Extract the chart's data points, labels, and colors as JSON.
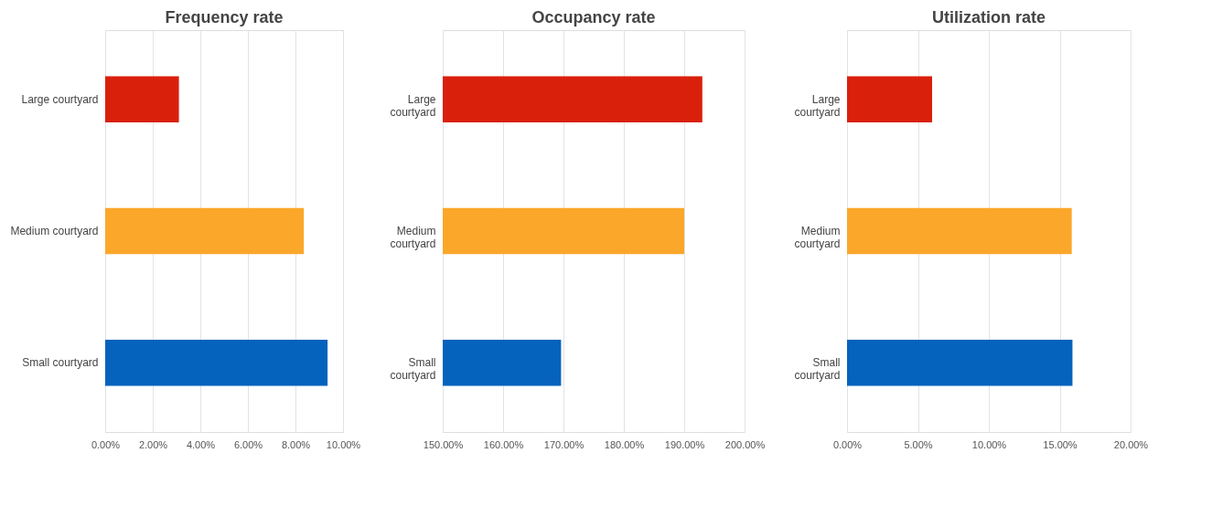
{
  "chart_data": [
    {
      "type": "bar",
      "orientation": "horizontal",
      "title": "Frequency rate",
      "categories": [
        "Large courtyard",
        "Medium courtyard",
        "Small courtyard"
      ],
      "values": [
        3.1,
        8.35,
        9.35
      ],
      "colors": [
        "#d9200b",
        "#fba72a",
        "#0562bd"
      ],
      "xlim": [
        0,
        10
      ],
      "xticks": [
        {
          "value": 0,
          "label": "0.00%"
        },
        {
          "value": 2,
          "label": "2.00%"
        },
        {
          "value": 4,
          "label": "4.00%"
        },
        {
          "value": 6,
          "label": "6.00%"
        },
        {
          "value": 8,
          "label": "8.00%"
        },
        {
          "value": 10,
          "label": "10.00%"
        }
      ],
      "grid": "x",
      "legend": false
    },
    {
      "type": "bar",
      "orientation": "horizontal",
      "title": "Occupancy rate",
      "categories": [
        "Large courtyard",
        "Medium courtyard",
        "Small courtyard"
      ],
      "values": [
        193,
        190,
        169.6
      ],
      "colors": [
        "#d9200b",
        "#fba72a",
        "#0562bd"
      ],
      "xlim": [
        150,
        200
      ],
      "xticks": [
        {
          "value": 150,
          "label": "150.00%"
        },
        {
          "value": 160,
          "label": "160.00%"
        },
        {
          "value": 170,
          "label": "170.00%"
        },
        {
          "value": 180,
          "label": "180.00%"
        },
        {
          "value": 190,
          "label": "190.00%"
        },
        {
          "value": 200,
          "label": "200.00%"
        }
      ],
      "grid": "x",
      "legend": false
    },
    {
      "type": "bar",
      "orientation": "horizontal",
      "title": "Utilization rate",
      "categories": [
        "Large courtyard",
        "Medium courtyard",
        "Small courtyard"
      ],
      "values": [
        6.0,
        15.85,
        15.9
      ],
      "colors": [
        "#d9200b",
        "#fba72a",
        "#0562bd"
      ],
      "xlim": [
        0,
        20
      ],
      "xticks": [
        {
          "value": 0,
          "label": "0.00%"
        },
        {
          "value": 5,
          "label": "5.00%"
        },
        {
          "value": 10,
          "label": "10.00%"
        },
        {
          "value": 15,
          "label": "15.00%"
        },
        {
          "value": 20,
          "label": "20.00%"
        }
      ],
      "grid": "x",
      "legend": false
    }
  ]
}
